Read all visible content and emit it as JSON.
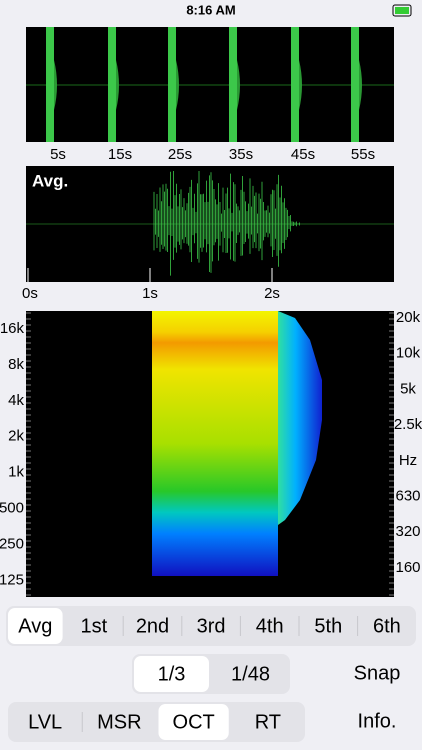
{
  "status_bar": {
    "time": "8:16 AM"
  },
  "overview": {
    "time_labels": [
      "5s",
      "15s",
      "25s",
      "35s",
      "45s",
      "55s"
    ]
  },
  "average": {
    "label": "Avg.",
    "time_labels": [
      "0s",
      "1s",
      "2s"
    ]
  },
  "spectrogram": {
    "left_labels": [
      "16k",
      "8k",
      "4k",
      "2k",
      "1k",
      "500",
      "250",
      "125"
    ],
    "right_labels": [
      "20k",
      "10k",
      "5k",
      "2.5k",
      "Hz",
      "630",
      "320",
      "160"
    ]
  },
  "measurement_tabs": [
    "Avg",
    "1st",
    "2nd",
    "3rd",
    "4th",
    "5th",
    "6th"
  ],
  "resolution_tabs": [
    "1/3",
    "1/48"
  ],
  "snap_button": "Snap",
  "mode_tabs": [
    "LVL",
    "MSR",
    "OCT",
    "RT"
  ],
  "info_button": "Info."
}
